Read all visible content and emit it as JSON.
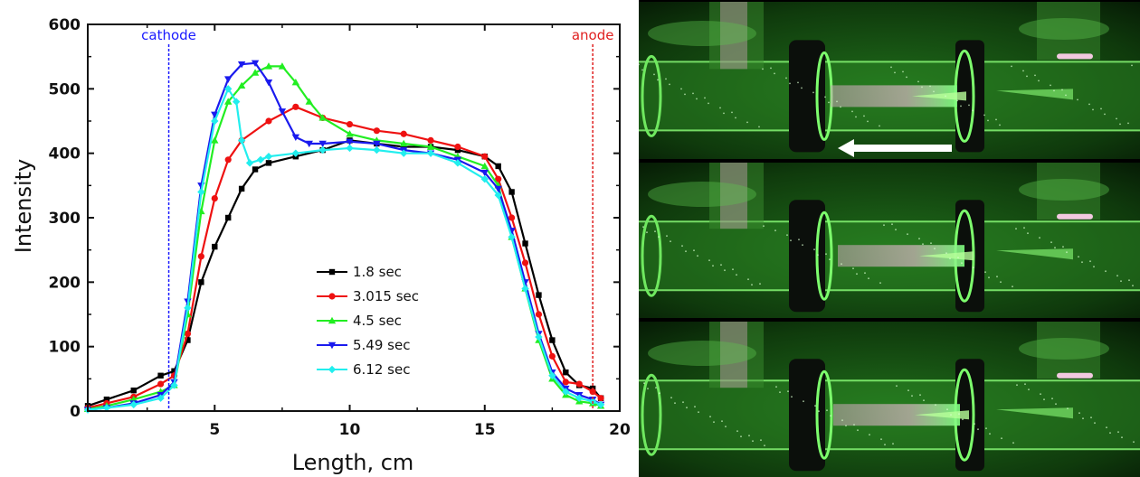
{
  "chart_data": {
    "type": "line",
    "xlabel": "Length, cm",
    "ylabel": "Intensity",
    "xlim": [
      0.3,
      20
    ],
    "ylim": [
      0,
      600
    ],
    "xticks": [
      "5",
      "10",
      "15",
      "20"
    ],
    "yticks": [
      "0",
      "100",
      "200",
      "300",
      "400",
      "500",
      "600"
    ],
    "legend_position": "center-bottom",
    "markers": [
      {
        "label": "cathode",
        "x": 3.3,
        "color": "#1a1aff"
      },
      {
        "label": "anode",
        "x": 19.0,
        "color": "#e02020"
      }
    ],
    "series": [
      {
        "name": "1.8 sec",
        "color": "#000000",
        "marker": "square",
        "points": [
          [
            0.3,
            8
          ],
          [
            1,
            18
          ],
          [
            2,
            32
          ],
          [
            3,
            55
          ],
          [
            3.5,
            62
          ],
          [
            4,
            110
          ],
          [
            4.5,
            200
          ],
          [
            5,
            255
          ],
          [
            5.5,
            300
          ],
          [
            6,
            345
          ],
          [
            6.5,
            375
          ],
          [
            7,
            385
          ],
          [
            8,
            395
          ],
          [
            9,
            405
          ],
          [
            10,
            420
          ],
          [
            11,
            415
          ],
          [
            12,
            410
          ],
          [
            13,
            410
          ],
          [
            14,
            405
          ],
          [
            15,
            395
          ],
          [
            15.5,
            380
          ],
          [
            16,
            340
          ],
          [
            16.5,
            260
          ],
          [
            17,
            180
          ],
          [
            17.5,
            110
          ],
          [
            18,
            60
          ],
          [
            18.5,
            40
          ],
          [
            19,
            35
          ],
          [
            19.3,
            20
          ]
        ]
      },
      {
        "name": "3.015 sec",
        "color": "#ee1111",
        "marker": "circle",
        "points": [
          [
            0.3,
            5
          ],
          [
            1,
            12
          ],
          [
            2,
            22
          ],
          [
            3,
            42
          ],
          [
            3.5,
            55
          ],
          [
            4,
            120
          ],
          [
            4.5,
            240
          ],
          [
            5,
            330
          ],
          [
            5.5,
            390
          ],
          [
            6,
            420
          ],
          [
            7,
            450
          ],
          [
            8,
            472
          ],
          [
            9,
            455
          ],
          [
            10,
            445
          ],
          [
            11,
            435
          ],
          [
            12,
            430
          ],
          [
            13,
            420
          ],
          [
            14,
            410
          ],
          [
            15,
            395
          ],
          [
            15.5,
            360
          ],
          [
            16,
            300
          ],
          [
            16.5,
            230
          ],
          [
            17,
            150
          ],
          [
            17.5,
            85
          ],
          [
            18,
            45
          ],
          [
            18.5,
            42
          ],
          [
            19,
            30
          ],
          [
            19.3,
            20
          ]
        ]
      },
      {
        "name": "4.5 sec",
        "color": "#22ee22",
        "marker": "triangle-up",
        "points": [
          [
            0.3,
            3
          ],
          [
            1,
            8
          ],
          [
            2,
            18
          ],
          [
            3,
            30
          ],
          [
            3.5,
            40
          ],
          [
            4,
            150
          ],
          [
            4.5,
            310
          ],
          [
            5,
            420
          ],
          [
            5.5,
            480
          ],
          [
            6,
            505
          ],
          [
            6.5,
            525
          ],
          [
            7,
            535
          ],
          [
            7.5,
            535
          ],
          [
            8,
            510
          ],
          [
            8.5,
            480
          ],
          [
            9,
            455
          ],
          [
            10,
            430
          ],
          [
            11,
            420
          ],
          [
            12,
            415
          ],
          [
            13,
            410
          ],
          [
            14,
            395
          ],
          [
            15,
            380
          ],
          [
            15.5,
            350
          ],
          [
            16,
            270
          ],
          [
            16.5,
            190
          ],
          [
            17,
            110
          ],
          [
            17.5,
            50
          ],
          [
            18,
            25
          ],
          [
            18.5,
            15
          ],
          [
            19,
            12
          ],
          [
            19.3,
            8
          ]
        ]
      },
      {
        "name": "5.49 sec",
        "color": "#1a1aee",
        "marker": "triangle-down",
        "points": [
          [
            0.3,
            2
          ],
          [
            1,
            5
          ],
          [
            2,
            12
          ],
          [
            3,
            25
          ],
          [
            3.5,
            45
          ],
          [
            4,
            170
          ],
          [
            4.5,
            350
          ],
          [
            5,
            460
          ],
          [
            5.5,
            515
          ],
          [
            6,
            538
          ],
          [
            6.5,
            540
          ],
          [
            7,
            510
          ],
          [
            7.5,
            465
          ],
          [
            8,
            425
          ],
          [
            8.5,
            415
          ],
          [
            9,
            415
          ],
          [
            10,
            418
          ],
          [
            11,
            415
          ],
          [
            12,
            405
          ],
          [
            13,
            400
          ],
          [
            14,
            390
          ],
          [
            15,
            370
          ],
          [
            15.5,
            345
          ],
          [
            16,
            280
          ],
          [
            16.5,
            200
          ],
          [
            17,
            120
          ],
          [
            17.5,
            60
          ],
          [
            18,
            35
          ],
          [
            18.5,
            25
          ],
          [
            19,
            18
          ],
          [
            19.3,
            10
          ]
        ]
      },
      {
        "name": "6.12 sec",
        "color": "#22eeee",
        "marker": "diamond",
        "points": [
          [
            0.3,
            2
          ],
          [
            1,
            5
          ],
          [
            2,
            10
          ],
          [
            3,
            20
          ],
          [
            3.5,
            40
          ],
          [
            4,
            160
          ],
          [
            4.5,
            340
          ],
          [
            5,
            450
          ],
          [
            5.5,
            500
          ],
          [
            5.8,
            480
          ],
          [
            6,
            420
          ],
          [
            6.3,
            385
          ],
          [
            6.7,
            390
          ],
          [
            7,
            395
          ],
          [
            8,
            400
          ],
          [
            9,
            405
          ],
          [
            10,
            408
          ],
          [
            11,
            405
          ],
          [
            12,
            400
          ],
          [
            13,
            400
          ],
          [
            14,
            385
          ],
          [
            15,
            360
          ],
          [
            15.5,
            335
          ],
          [
            16,
            270
          ],
          [
            16.5,
            190
          ],
          [
            17,
            115
          ],
          [
            17.5,
            55
          ],
          [
            18,
            30
          ],
          [
            18.5,
            20
          ],
          [
            19,
            15
          ],
          [
            19.3,
            10
          ]
        ]
      }
    ]
  },
  "photos": [
    {
      "name": "frame-1",
      "has_arrow": true
    },
    {
      "name": "frame-2",
      "has_arrow": false
    },
    {
      "name": "frame-3",
      "has_arrow": false
    }
  ]
}
